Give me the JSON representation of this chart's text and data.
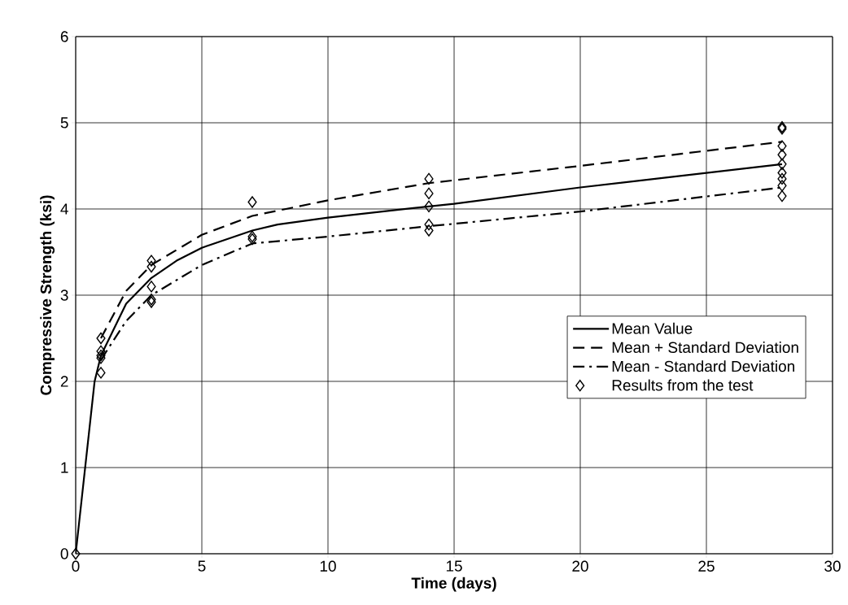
{
  "chart_data": {
    "type": "line",
    "xlabel": "Time (days)",
    "ylabel": "Compressive Strength (ksi)",
    "xlim": [
      0,
      30
    ],
    "xticks": [
      0,
      5,
      10,
      15,
      20,
      25,
      30
    ],
    "ylim": [
      0,
      6
    ],
    "yticks": [
      0,
      1,
      2,
      3,
      4,
      5,
      6
    ],
    "grid": true,
    "legend": "right",
    "series": [
      {
        "name": "Mean Value",
        "line_style": "solid",
        "marker": "none",
        "color": "#000000",
        "x": [
          0,
          0.75,
          1,
          2,
          3,
          4,
          5,
          7,
          8,
          10,
          14,
          15,
          20,
          28
        ],
        "values": [
          0,
          2.0,
          2.3,
          2.9,
          3.2,
          3.4,
          3.55,
          3.75,
          3.82,
          3.9,
          4.03,
          4.06,
          4.25,
          4.52
        ]
      },
      {
        "name": "Mean + Standard Deviation",
        "line_style": "dashed",
        "marker": "none",
        "color": "#000000",
        "x": [
          1,
          2,
          3,
          5,
          7,
          10,
          14,
          20,
          28
        ],
        "values": [
          2.5,
          3.05,
          3.35,
          3.7,
          3.92,
          4.1,
          4.3,
          4.5,
          4.78
        ]
      },
      {
        "name": "Mean - Standard Deviation",
        "line_style": "dashdot",
        "marker": "none",
        "color": "#000000",
        "x": [
          1,
          2,
          3,
          5,
          7,
          10,
          14,
          20,
          28
        ],
        "values": [
          2.25,
          2.7,
          3.0,
          3.35,
          3.6,
          3.68,
          3.8,
          3.97,
          4.25
        ]
      },
      {
        "name": "Results from the test",
        "type": "scatter",
        "marker": "diamond",
        "color": "#000000",
        "x": [
          0,
          1,
          1,
          1,
          1,
          1,
          3,
          3,
          3,
          3,
          3,
          7,
          7,
          7,
          14,
          14,
          14,
          14,
          14,
          28,
          28,
          28,
          28,
          28,
          28,
          28,
          28,
          28
        ],
        "values": [
          0,
          2.5,
          2.35,
          2.3,
          2.27,
          2.1,
          3.4,
          3.33,
          3.1,
          2.95,
          2.92,
          4.08,
          3.68,
          3.65,
          4.35,
          4.18,
          4.03,
          3.82,
          3.75,
          4.95,
          4.93,
          4.73,
          4.63,
          4.52,
          4.42,
          4.35,
          4.27,
          4.15
        ]
      }
    ]
  }
}
